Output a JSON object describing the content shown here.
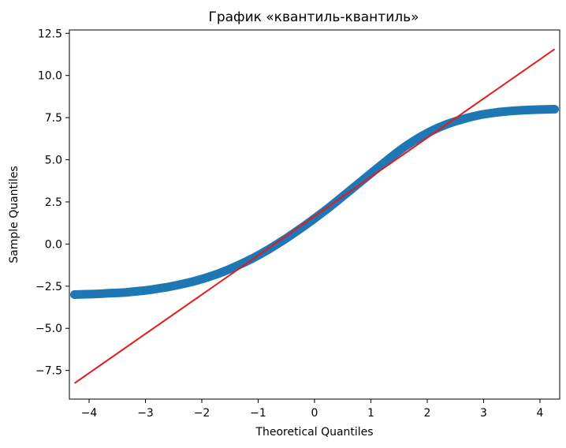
{
  "chart_data": {
    "type": "scatter",
    "title": "График «квантиль-квантиль»",
    "xlabel": "Theoretical Quantiles",
    "ylabel": "Sample Quantiles",
    "xlim": [
      -4.35,
      4.35
    ],
    "ylim": [
      -9.2,
      12.7
    ],
    "xticks": [
      -4,
      -3,
      -2,
      -1,
      0,
      1,
      2,
      3,
      4
    ],
    "xtick_labels": [
      "−4",
      "−3",
      "−2",
      "−1",
      "0",
      "1",
      "2",
      "3",
      "4"
    ],
    "yticks": [
      -7.5,
      -5.0,
      -2.5,
      0.0,
      2.5,
      5.0,
      7.5,
      10.0,
      12.5
    ],
    "ytick_labels": [
      "−7.5",
      "−5.0",
      "−2.5",
      "0.0",
      "2.5",
      "5.0",
      "7.5",
      "10.0",
      "12.5"
    ],
    "grid": false,
    "series": [
      {
        "kind": "sample",
        "marker": "+",
        "color": "#1f77b4",
        "x": [
          -4.26,
          -4.1,
          -3.95,
          -3.8,
          -3.65,
          -3.5,
          -3.35,
          -3.2,
          -3.05,
          -2.9,
          -2.75,
          -2.6,
          -2.45,
          -2.3,
          -2.15,
          -2.0,
          -1.85,
          -1.7,
          -1.55,
          -1.4,
          -1.25,
          -1.1,
          -0.95,
          -0.8,
          -0.65,
          -0.5,
          -0.35,
          -0.2,
          -0.05,
          0.1,
          0.25,
          0.4,
          0.55,
          0.7,
          0.85,
          1.0,
          1.15,
          1.3,
          1.45,
          1.6,
          1.75,
          1.9,
          2.05,
          2.2,
          2.35,
          2.5,
          2.65,
          2.8,
          2.95,
          3.1,
          3.25,
          3.4,
          3.55,
          3.7,
          3.85,
          4.0,
          4.15,
          4.26
        ],
        "y": [
          -3.0,
          -2.98,
          -2.97,
          -2.95,
          -2.92,
          -2.9,
          -2.87,
          -2.82,
          -2.77,
          -2.71,
          -2.63,
          -2.55,
          -2.45,
          -2.34,
          -2.22,
          -2.08,
          -1.92,
          -1.75,
          -1.55,
          -1.33,
          -1.1,
          -0.85,
          -0.58,
          -0.29,
          0.02,
          0.34,
          0.68,
          1.03,
          1.39,
          1.77,
          2.15,
          2.55,
          2.96,
          3.37,
          3.78,
          4.19,
          4.6,
          5.0,
          5.4,
          5.77,
          6.1,
          6.4,
          6.67,
          6.91,
          7.11,
          7.28,
          7.43,
          7.56,
          7.67,
          7.75,
          7.82,
          7.87,
          7.91,
          7.94,
          7.96,
          7.98,
          7.99,
          8.0
        ]
      },
      {
        "kind": "reference-line",
        "color": "#e41a1c",
        "x": [
          -4.26,
          4.26
        ],
        "y": [
          -8.26,
          11.56
        ]
      }
    ]
  }
}
